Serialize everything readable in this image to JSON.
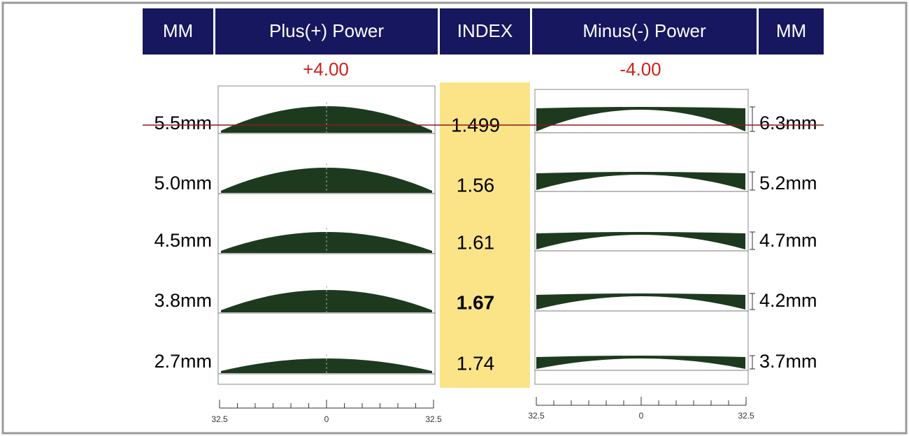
{
  "header": {
    "columns": [
      "MM",
      "Plus(+) Power",
      "INDEX",
      "Minus(-) Power",
      "MM"
    ]
  },
  "powers": {
    "plus": "+4.00",
    "minus": "-4.00"
  },
  "rows": [
    {
      "plus_thickness": "5.5mm",
      "index": "1.499",
      "minus_thickness": "6.3mm"
    },
    {
      "plus_thickness": "5.0mm",
      "index": "1.56",
      "minus_thickness": "5.2mm"
    },
    {
      "plus_thickness": "4.5mm",
      "index": "1.61",
      "minus_thickness": "4.7mm"
    },
    {
      "plus_thickness": "3.8mm",
      "index": "1.67",
      "minus_thickness": "4.2mm"
    },
    {
      "plus_thickness": "2.7mm",
      "index": "1.74",
      "minus_thickness": "3.7mm"
    }
  ],
  "scale": {
    "left": [
      "32.5",
      "0",
      "32.5"
    ],
    "right": [
      "32.5",
      "0",
      "32.5"
    ]
  }
}
